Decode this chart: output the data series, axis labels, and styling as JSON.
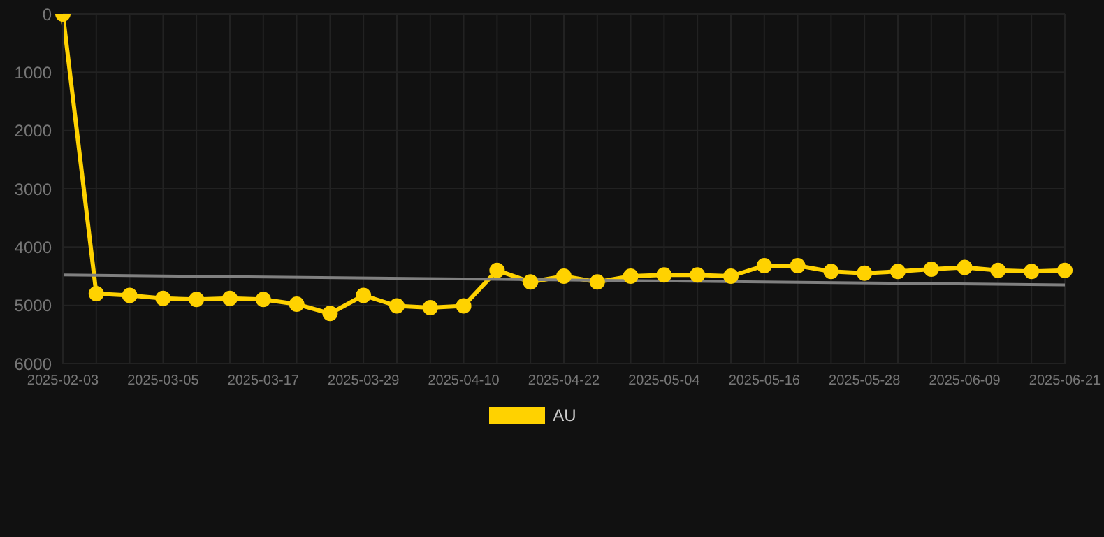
{
  "chart_data": {
    "type": "line",
    "categories": [
      "2025-02-03",
      null,
      null,
      "2025-03-05",
      null,
      null,
      "2025-03-17",
      null,
      null,
      "2025-03-29",
      null,
      null,
      "2025-04-10",
      null,
      null,
      "2025-04-22",
      null,
      null,
      "2025-05-04",
      null,
      null,
      "2025-05-16",
      null,
      null,
      "2025-05-28",
      null,
      null,
      "2025-06-09",
      null,
      null,
      "2025-06-21"
    ],
    "series": [
      {
        "name": "AU",
        "color": "#ffd200",
        "marker": "circle",
        "values": [
          0,
          4800,
          4830,
          4880,
          4900,
          4880,
          4900,
          4980,
          5140,
          4830,
          5010,
          5040,
          5010,
          4400,
          4600,
          4500,
          4600,
          4500,
          4480,
          4480,
          4500,
          4320,
          4320,
          4420,
          4450,
          4420,
          4380,
          4350,
          4400,
          4420,
          4400
        ]
      },
      {
        "type": "line",
        "color": "#808080",
        "marker": "none",
        "values": [
          4480,
          null,
          null,
          null,
          null,
          null,
          null,
          null,
          null,
          null,
          null,
          null,
          null,
          null,
          null,
          null,
          null,
          null,
          null,
          null,
          null,
          null,
          null,
          null,
          null,
          null,
          null,
          null,
          null,
          null,
          4650
        ]
      }
    ],
    "ylim": [
      6000,
      0
    ],
    "yticks": [
      0,
      1000,
      2000,
      3000,
      4000,
      5000,
      6000
    ],
    "grid": true,
    "legend": "bottom"
  }
}
